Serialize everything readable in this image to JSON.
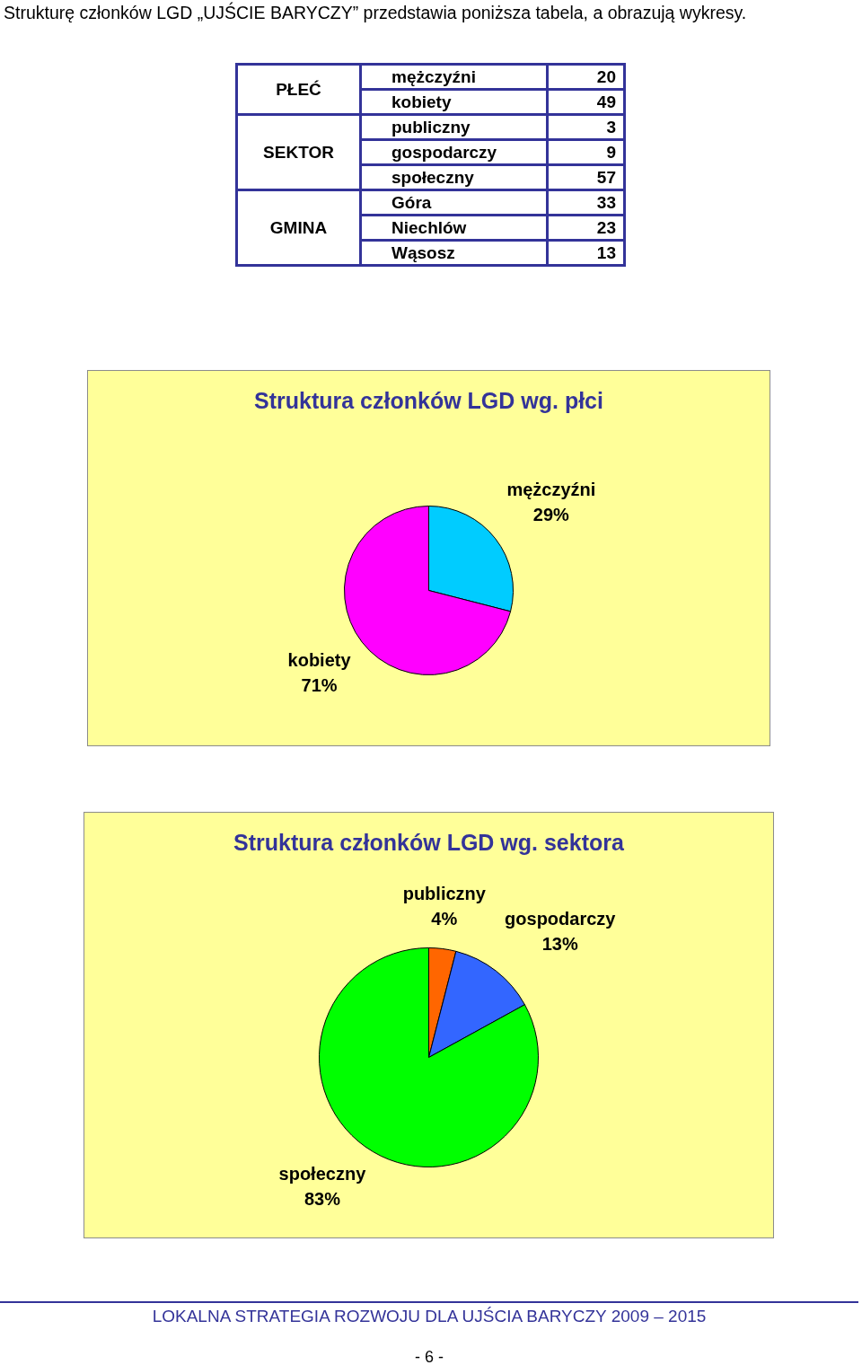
{
  "chart_data": [
    {
      "type": "other",
      "title": "Strukturę członków LGD „UJŚCIE BARYCZY” przedstawia poniższa tabela, a obrazują wykresy.",
      "categories": [
        "mężczyźni",
        "kobiety",
        "publiczny",
        "gospodarczy",
        "społeczny",
        "Góra",
        "Niechlów",
        "Wąsosz"
      ],
      "series": [
        {
          "name": "PŁEĆ",
          "values": [
            20,
            49,
            null,
            null,
            null,
            null,
            null,
            null
          ]
        },
        {
          "name": "SEKTOR",
          "values": [
            null,
            null,
            3,
            9,
            57,
            null,
            null,
            null
          ]
        },
        {
          "name": "GMINA",
          "values": [
            null,
            null,
            null,
            null,
            null,
            33,
            23,
            13
          ]
        }
      ],
      "data_labels": true
    },
    {
      "type": "pie",
      "title": "Struktura członków LGD wg. płci",
      "categories": [
        "mężczyźni",
        "kobiety"
      ],
      "values": [
        29,
        71
      ],
      "colors": [
        "#00ccff",
        "#ff00ff"
      ],
      "value_labels": [
        "29%",
        "71%"
      ]
    },
    {
      "type": "pie",
      "title": "Struktura członków LGD wg. sektora",
      "categories": [
        "publiczny",
        "gospodarczy",
        "społeczny"
      ],
      "values": [
        4,
        13,
        83
      ],
      "colors": [
        "#ff6600",
        "#3366ff",
        "#00ff00"
      ],
      "value_labels": [
        "4%",
        "13%",
        "83%"
      ],
      "annotations": [
        "LOKALNA STRATEGIA ROZWOJU DLA UJŚCIA BARYCZY 2009 – 2015",
        "- 6 -"
      ]
    }
  ]
}
